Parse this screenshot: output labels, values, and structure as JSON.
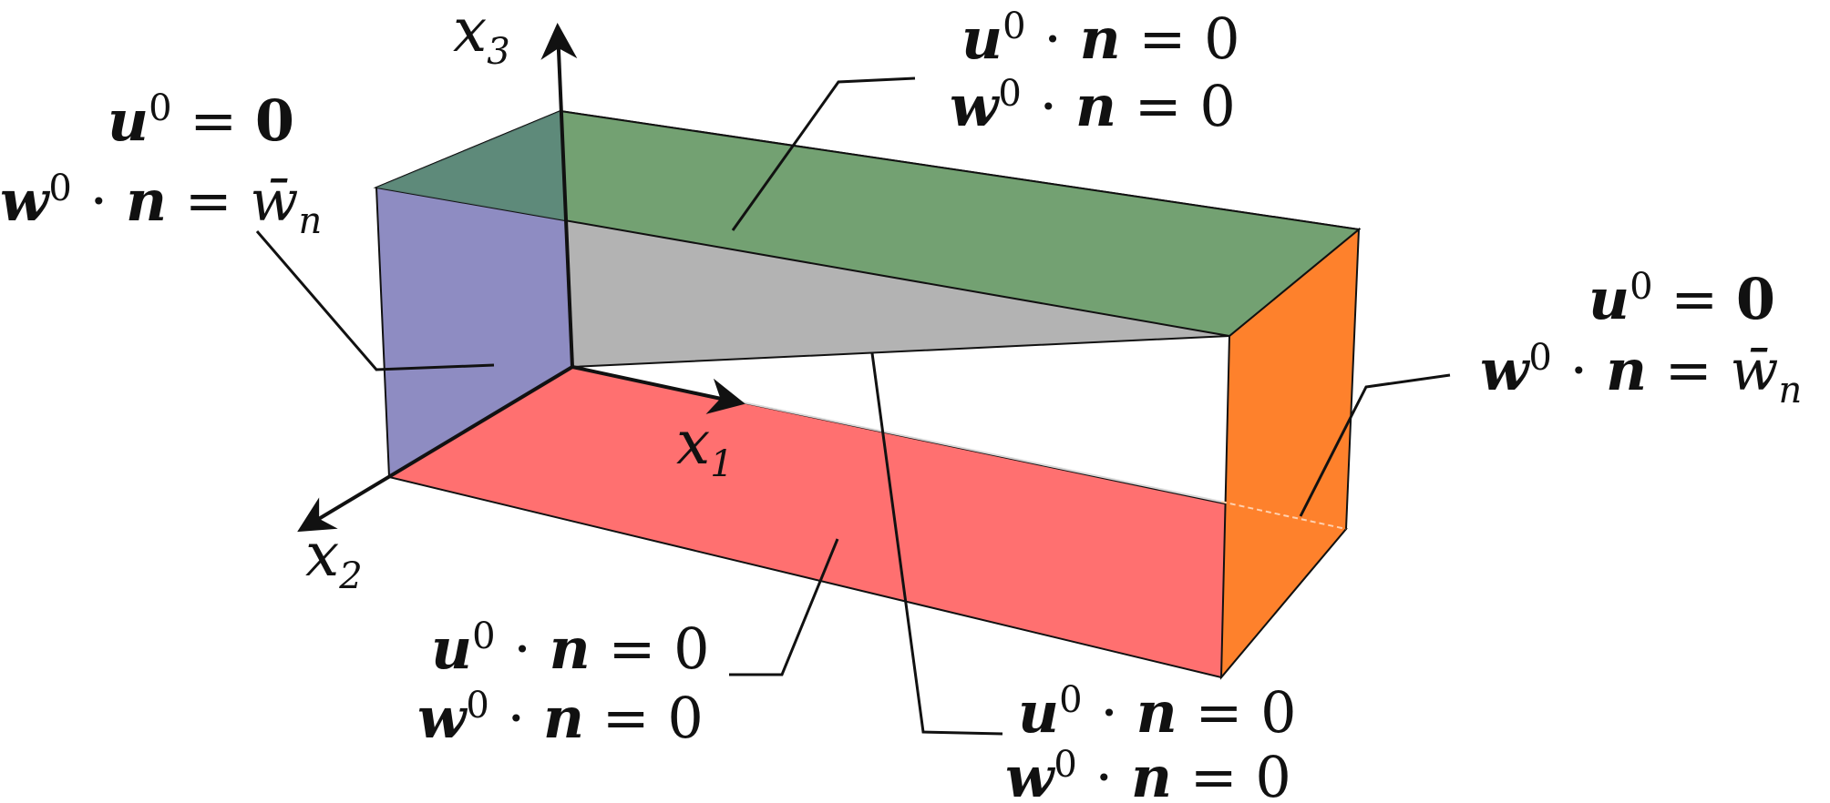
{
  "axes": {
    "x1": {
      "symbol": "x",
      "index": "1"
    },
    "x2": {
      "symbol": "x",
      "index": "2"
    },
    "x3": {
      "symbol": "x",
      "index": "3"
    }
  },
  "labels": {
    "top": {
      "line1": {
        "lhs": "u",
        "sup": "0",
        "op": " · ",
        "n": "n",
        "rhs": " = 0"
      },
      "line2": {
        "lhs": "w",
        "sup": "0",
        "op": " · ",
        "n": "n",
        "rhs": " = 0"
      }
    },
    "left": {
      "line1": {
        "lhs": "u",
        "sup": "0",
        "rhs_prefix": " = ",
        "rhs_bold": "0"
      },
      "line2": {
        "lhs": "w",
        "sup": "0",
        "op": " · ",
        "n": "n",
        "eq": " = ",
        "rhs": "w̄",
        "rhs_sub": "n"
      }
    },
    "right": {
      "line1": {
        "lhs": "u",
        "sup": "0",
        "rhs_prefix": " = ",
        "rhs_bold": "0"
      },
      "line2": {
        "lhs": "w",
        "sup": "0",
        "op": " · ",
        "n": "n",
        "eq": " = ",
        "rhs": "w̄",
        "rhs_sub": "n"
      }
    },
    "bottom_left": {
      "line1": {
        "lhs": "u",
        "sup": "0",
        "op": " · ",
        "n": "n",
        "rhs": " = 0"
      },
      "line2": {
        "lhs": "w",
        "sup": "0",
        "op": " · ",
        "n": "n",
        "rhs": " = 0"
      }
    },
    "bottom_right": {
      "line1": {
        "lhs": "u",
        "sup": "0",
        "op": " · ",
        "n": "n",
        "rhs": " = 0"
      },
      "line2": {
        "lhs": "w",
        "sup": "0",
        "op": " · ",
        "n": "n",
        "rhs": " = 0"
      }
    }
  },
  "colors": {
    "top_face": "#73a172",
    "top_face_back": "#5c877b",
    "left_face": "#8e8cc2",
    "back_face": "#b3b3b3",
    "bottom_face": "#ff7070",
    "right_face": "#fe812c",
    "stroke": "#111111"
  }
}
